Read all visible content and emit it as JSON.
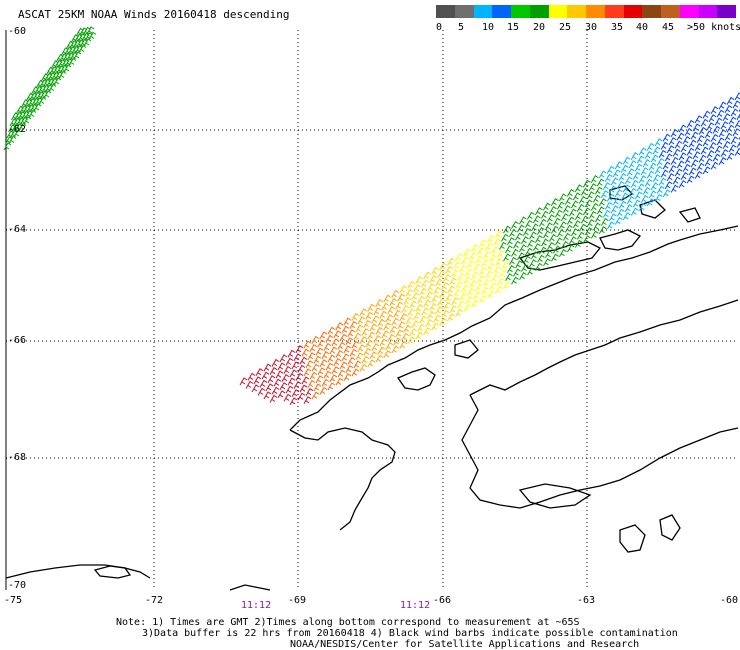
{
  "title": "ASCAT 25KM NOAA Winds 20160418 descending",
  "legend": {
    "colors": [
      "#555555",
      "#6a6a6a",
      "#00a0ff",
      "#0050ff",
      "#00c000",
      "#00a000",
      "#ffff00",
      "#ffc000",
      "#ff8000",
      "#ff2000",
      "#ff4040",
      "#8b4513",
      "#b05a1a",
      "#ff00ff",
      "#d000ff",
      "#8000ff",
      "#400080"
    ],
    "labels": [
      "0",
      "5",
      "10",
      "15",
      "20",
      "25",
      "30",
      "35",
      "40",
      "45",
      ">50 knots"
    ]
  },
  "lat_labels": [
    "-60",
    "-62",
    "-64",
    "-66",
    "-68",
    "-70"
  ],
  "lon_labels": [
    "-75",
    "-72",
    "-69",
    "-66",
    "-63",
    "-60"
  ],
  "times": [
    "11:12",
    "11:12"
  ],
  "notes": [
    "Note: 1) Times are GMT 2)Times along bottom correspond to measurement at ~65S",
    "3)Data buffer is 22 hrs from 20160418 4) Black wind barbs indicate possible contamination",
    "NOAA/NESDIS/Center for Satellite Applications and Research"
  ]
}
